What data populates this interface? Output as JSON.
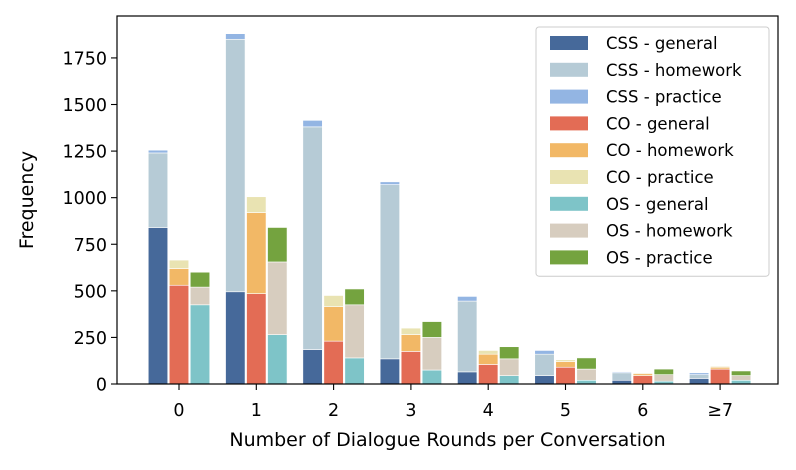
{
  "chart_data": {
    "type": "bar",
    "stacked": true,
    "grouped": true,
    "xlabel": "Number of Dialogue Rounds per Conversation",
    "ylabel": "Frequency",
    "categories": [
      "0",
      "1",
      "2",
      "3",
      "4",
      "5",
      "6",
      "≥7"
    ],
    "ylim": [
      0,
      1975
    ],
    "yticks": [
      0,
      250,
      500,
      750,
      1000,
      1250,
      1500,
      1750
    ],
    "grid": false,
    "legend_position": "top-right",
    "groups": [
      {
        "name": "CSS",
        "series": [
          {
            "name": "CSS - general",
            "color": "#46699a",
            "values": [
              840,
              495,
              185,
              135,
              65,
              45,
              20,
              30
            ]
          },
          {
            "name": "CSS - homework",
            "color": "#b6cbd6",
            "values": [
              400,
              1355,
              1195,
              935,
              380,
              115,
              40,
              20
            ]
          },
          {
            "name": "CSS - practice",
            "color": "#93b5e3",
            "values": [
              15,
              30,
              35,
              15,
              25,
              20,
              5,
              10
            ]
          }
        ]
      },
      {
        "name": "CO",
        "series": [
          {
            "name": "CO - general",
            "color": "#e36c55",
            "values": [
              530,
              485,
              230,
              175,
              105,
              90,
              45,
              80
            ]
          },
          {
            "name": "CO - homework",
            "color": "#f2b866",
            "values": [
              90,
              435,
              185,
              90,
              55,
              30,
              10,
              10
            ]
          },
          {
            "name": "CO - practice",
            "color": "#e9e3b2",
            "values": [
              45,
              85,
              60,
              35,
              20,
              10,
              5,
              5
            ]
          }
        ]
      },
      {
        "name": "OS",
        "series": [
          {
            "name": "OS - general",
            "color": "#7ec4c8",
            "values": [
              425,
              265,
              140,
              75,
              45,
              20,
              15,
              20
            ]
          },
          {
            "name": "OS - homework",
            "color": "#d7cdbf",
            "values": [
              95,
              390,
              285,
              175,
              90,
              60,
              35,
              25
            ]
          },
          {
            "name": "OS - practice",
            "color": "#74a33f",
            "values": [
              80,
              185,
              85,
              85,
              65,
              60,
              30,
              25
            ]
          }
        ]
      }
    ]
  }
}
